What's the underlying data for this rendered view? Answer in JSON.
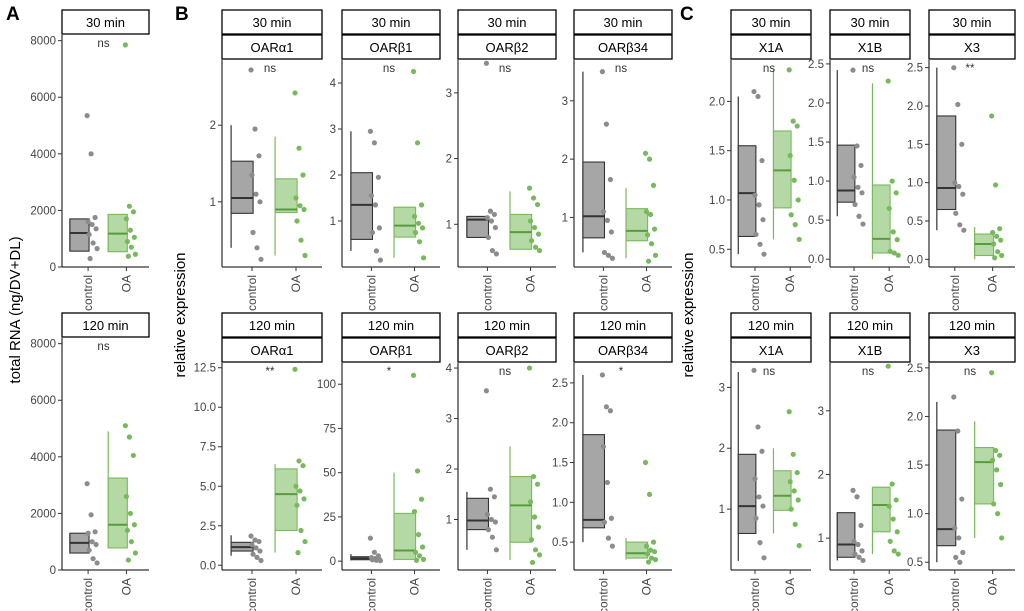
{
  "figure": {
    "panel_letters": [
      "A",
      "B",
      "C"
    ],
    "y_titles": [
      "total RNA (ng/DV+DL)",
      "relative expression",
      "relative expression"
    ],
    "colors": {
      "control": "#8c8c8c",
      "OA": "#78b95d",
      "control_fill": "#a6a6a6",
      "OA_fill": "#b5d9a4"
    }
  },
  "chart_data": [
    {
      "id": "A-30",
      "type": "box",
      "strips": [
        "30 min"
      ],
      "sig": "ns",
      "ylim": [
        0,
        8200
      ],
      "ticks": [
        0,
        2000,
        4000,
        6000,
        8000
      ],
      "categories": [
        "control",
        "OA"
      ],
      "boxes": [
        {
          "q1": 560,
          "med": 1200,
          "q3": 1700,
          "lo": 560,
          "hi": 1700
        },
        {
          "q1": 540,
          "med": 1180,
          "q3": 1860,
          "lo": 540,
          "hi": 1860
        }
      ],
      "points": [
        [
          5350,
          4000,
          1750,
          1600,
          1500,
          1350,
          1150,
          850,
          650,
          300
        ],
        [
          7850,
          2150,
          1950,
          1700,
          1300,
          1050,
          900,
          700,
          450,
          380
        ]
      ]
    },
    {
      "id": "A-120",
      "type": "box",
      "strips": [
        "120 min"
      ],
      "sig": "ns",
      "ylim": [
        0,
        8200
      ],
      "ticks": [
        0,
        2000,
        4000,
        6000,
        8000
      ],
      "categories": [
        "control",
        "OA"
      ],
      "boxes": [
        {
          "q1": 600,
          "med": 960,
          "q3": 1300,
          "lo": 600,
          "hi": 1300
        },
        {
          "q1": 780,
          "med": 1600,
          "q3": 3250,
          "lo": 780,
          "hi": 4900
        }
      ],
      "points": [
        [
          3050,
          1950,
          1350,
          1300,
          1000,
          900,
          700,
          400,
          250
        ],
        [
          5100,
          4700,
          4050,
          2600,
          2000,
          1600,
          1400,
          1000,
          600,
          350
        ]
      ]
    },
    {
      "id": "B-30-a1",
      "type": "box",
      "strips": [
        "30 min",
        "OARα1"
      ],
      "sig": "ns",
      "ylim": [
        0.15,
        2.85
      ],
      "ticks": [
        1,
        2
      ],
      "categories": [
        "control",
        "OA"
      ],
      "boxes": [
        {
          "q1": 0.85,
          "med": 1.05,
          "q3": 1.53,
          "lo": 0.4,
          "hi": 2.0
        },
        {
          "q1": 0.86,
          "med": 0.9,
          "q3": 1.3,
          "lo": 0.3,
          "hi": 1.85
        }
      ],
      "points": [
        [
          2.72,
          1.95,
          1.6,
          1.35,
          1.1,
          1.0,
          0.6,
          0.4,
          0.25
        ],
        [
          2.42,
          1.7,
          1.35,
          1.05,
          0.95,
          0.9,
          0.75,
          0.5,
          0.3
        ]
      ]
    },
    {
      "id": "B-30-b1",
      "type": "box",
      "strips": [
        "30 min",
        "OARβ1"
      ],
      "sig": "ns",
      "ylim": [
        0,
        4.5
      ],
      "ticks": [
        1,
        2,
        3,
        4
      ],
      "categories": [
        "control",
        "OA"
      ],
      "boxes": [
        {
          "q1": 0.6,
          "med": 1.35,
          "q3": 2.05,
          "lo": 0.35,
          "hi": 2.95
        },
        {
          "q1": 0.65,
          "med": 0.9,
          "q3": 1.3,
          "lo": 0.2,
          "hi": 1.3
        }
      ],
      "points": [
        [
          2.95,
          2.7,
          1.95,
          1.55,
          1.35,
          0.85,
          0.75,
          0.35,
          0.15
        ],
        [
          4.25,
          2.7,
          1.35,
          1.1,
          0.95,
          0.85,
          0.75,
          0.55,
          0.2
        ]
      ]
    },
    {
      "id": "B-30-b2",
      "type": "box",
      "strips": [
        "30 min",
        "OARβ2"
      ],
      "sig": "ns",
      "ylim": [
        0.35,
        3.5
      ],
      "ticks": [
        1,
        2,
        3
      ],
      "categories": [
        "control",
        "OA"
      ],
      "boxes": [
        {
          "q1": 0.8,
          "med": 1.07,
          "q3": 1.12,
          "lo": 0.8,
          "hi": 1.12
        },
        {
          "q1": 0.62,
          "med": 0.88,
          "q3": 1.15,
          "lo": 0.62,
          "hi": 1.5
        }
      ],
      "points": [
        [
          3.45,
          1.2,
          1.15,
          1.1,
          1.05,
          0.95,
          0.8,
          0.6,
          0.55
        ],
        [
          1.55,
          1.4,
          1.3,
          1.05,
          0.95,
          0.85,
          0.75,
          0.65,
          0.6
        ]
      ]
    },
    {
      "id": "B-30-b34",
      "type": "box",
      "strips": [
        "30 min",
        "OARβ34"
      ],
      "sig": "ns",
      "ylim": [
        0.15,
        3.7
      ],
      "ticks": [
        1,
        2,
        3
      ],
      "categories": [
        "control",
        "OA"
      ],
      "boxes": [
        {
          "q1": 0.65,
          "med": 1.02,
          "q3": 1.95,
          "lo": 0.4,
          "hi": 3.5
        },
        {
          "q1": 0.6,
          "med": 0.77,
          "q3": 1.15,
          "lo": 0.3,
          "hi": 1.5
        }
      ],
      "points": [
        [
          3.5,
          2.6,
          1.65,
          1.1,
          0.95,
          0.75,
          0.4,
          0.35,
          0.3
        ],
        [
          2.1,
          2.0,
          1.55,
          1.1,
          1.05,
          0.8,
          0.7,
          0.55,
          0.35,
          0.25
        ]
      ]
    },
    {
      "id": "B-120-a1",
      "type": "box",
      "strips": [
        "120 min",
        "OARα1"
      ],
      "sig": "**",
      "ylim": [
        -0.3,
        12.8
      ],
      "ticks": [
        0.0,
        2.5,
        5.0,
        7.5,
        10.0,
        12.5
      ],
      "tick_digits": 1,
      "categories": [
        "control",
        "OA"
      ],
      "boxes": [
        {
          "q1": 0.9,
          "med": 1.15,
          "q3": 1.45,
          "lo": 0.6,
          "hi": 1.9
        },
        {
          "q1": 2.2,
          "med": 4.5,
          "q3": 6.1,
          "lo": 0.8,
          "hi": 6.4
        }
      ],
      "points": [
        [
          1.85,
          1.6,
          1.5,
          1.3,
          1.1,
          0.9,
          0.7,
          0.5,
          0.3
        ],
        [
          12.4,
          6.6,
          6.3,
          5.0,
          4.7,
          4.2,
          3.8,
          2.2,
          1.5,
          0.8
        ]
      ]
    },
    {
      "id": "B-120-b1",
      "type": "box",
      "strips": [
        "120 min",
        "OARβ1"
      ],
      "sig": "*",
      "ylim": [
        -5,
        112
      ],
      "ticks": [
        0,
        25,
        50,
        75,
        100
      ],
      "categories": [
        "control",
        "OA"
      ],
      "boxes": [
        {
          "q1": 0.8,
          "med": 1.6,
          "q3": 2.5,
          "lo": 0.5,
          "hi": 4
        },
        {
          "q1": 1,
          "med": 6,
          "q3": 27,
          "lo": 0.5,
          "hi": 50
        }
      ],
      "points": [
        [
          13,
          5,
          3,
          2,
          1.5,
          1,
          0.8,
          0.5,
          0.3
        ],
        [
          105,
          51,
          35,
          28,
          15,
          8,
          5,
          3,
          1,
          0.5
        ]
      ]
    },
    {
      "id": "B-120-b2",
      "type": "box",
      "strips": [
        "120 min",
        "OARβ2"
      ],
      "sig": "ns",
      "ylim": [
        0,
        4.1
      ],
      "ticks": [
        1,
        2,
        3,
        4
      ],
      "categories": [
        "control",
        "OA"
      ],
      "boxes": [
        {
          "q1": 0.8,
          "med": 0.98,
          "q3": 1.42,
          "lo": 0.4,
          "hi": 1.55
        },
        {
          "q1": 0.55,
          "med": 1.28,
          "q3": 1.85,
          "lo": 0.2,
          "hi": 2.45
        }
      ],
      "points": [
        [
          3.55,
          1.6,
          1.45,
          1.1,
          1.0,
          0.95,
          0.8,
          0.65,
          0.4
        ],
        [
          4.0,
          1.85,
          1.7,
          1.35,
          1.05,
          0.85,
          0.6,
          0.4,
          0.3,
          0.15
        ]
      ]
    },
    {
      "id": "B-120-b34",
      "type": "box",
      "strips": [
        "120 min",
        "OARβ34"
      ],
      "sig": "*",
      "ylim": [
        0.15,
        2.75
      ],
      "ticks": [
        0.5,
        1.0,
        1.5,
        2.0,
        2.5
      ],
      "tick_digits": 1,
      "categories": [
        "control",
        "OA"
      ],
      "boxes": [
        {
          "q1": 0.68,
          "med": 0.78,
          "q3": 1.85,
          "lo": 0.5,
          "hi": 2.6
        },
        {
          "q1": 0.3,
          "med": 0.36,
          "q3": 0.5,
          "lo": 0.28,
          "hi": 0.55
        }
      ],
      "points": [
        [
          2.6,
          2.2,
          2.15,
          1.7,
          1.25,
          0.8,
          0.75,
          0.55,
          0.45
        ],
        [
          1.5,
          1.1,
          0.5,
          0.45,
          0.4,
          0.38,
          0.35,
          0.3,
          0.28,
          0.25
        ]
      ]
    },
    {
      "id": "C-30-x1a",
      "type": "box",
      "strips": [
        "30 min",
        "X1A"
      ],
      "sig": "ns",
      "ylim": [
        0.32,
        2.42
      ],
      "ticks": [
        0.5,
        1.0,
        1.5,
        2.0
      ],
      "tick_digits": 1,
      "categories": [
        "control",
        "OA"
      ],
      "boxes": [
        {
          "q1": 0.63,
          "med": 1.07,
          "q3": 1.55,
          "lo": 0.45,
          "hi": 2.05
        },
        {
          "q1": 0.92,
          "med": 1.3,
          "q3": 1.7,
          "lo": 0.6,
          "hi": 2.32
        }
      ],
      "points": [
        [
          2.1,
          2.05,
          1.4,
          1.05,
          0.95,
          0.8,
          0.65,
          0.55,
          0.45
        ],
        [
          2.32,
          1.8,
          1.75,
          1.45,
          1.2,
          1.0,
          0.85,
          0.75,
          0.6
        ]
      ]
    },
    {
      "id": "C-30-x1b",
      "type": "box",
      "strips": [
        "30 min",
        "X1B"
      ],
      "sig": "ns",
      "ylim": [
        -0.1,
        2.55
      ],
      "ticks": [
        0.0,
        0.5,
        1.0,
        1.5,
        2.0,
        2.5
      ],
      "tick_digits": 1,
      "categories": [
        "control",
        "OA"
      ],
      "boxes": [
        {
          "q1": 0.73,
          "med": 0.88,
          "q3": 1.46,
          "lo": 0.55,
          "hi": 2.42
        },
        {
          "q1": 0.08,
          "med": 0.26,
          "q3": 0.95,
          "lo": 0.0,
          "hi": 2.25
        }
      ],
      "points": [
        [
          2.42,
          1.45,
          1.2,
          1.05,
          0.92,
          0.85,
          0.7,
          0.55,
          0.45
        ],
        [
          2.28,
          1.0,
          0.85,
          0.65,
          0.35,
          0.25,
          0.1,
          0.08,
          0.05
        ]
      ]
    },
    {
      "id": "C-30-x3",
      "type": "box",
      "strips": [
        "30 min",
        "X3"
      ],
      "sig": "**",
      "ylim": [
        -0.1,
        2.6
      ],
      "ticks": [
        0.0,
        0.5,
        1.0,
        1.5,
        2.0,
        2.5
      ],
      "tick_digits": 1,
      "categories": [
        "control",
        "OA"
      ],
      "boxes": [
        {
          "q1": 0.65,
          "med": 0.93,
          "q3": 1.87,
          "lo": 0.38,
          "hi": 2.5
        },
        {
          "q1": 0.05,
          "med": 0.2,
          "q3": 0.33,
          "lo": 0.0,
          "hi": 0.42
        }
      ],
      "points": [
        [
          2.5,
          2.02,
          1.5,
          1.0,
          0.95,
          0.85,
          0.6,
          0.45,
          0.38
        ],
        [
          1.87,
          0.97,
          0.4,
          0.35,
          0.3,
          0.25,
          0.2,
          0.1,
          0.05,
          0.02
        ]
      ]
    },
    {
      "id": "C-120-x1a",
      "type": "box",
      "strips": [
        "120 min",
        "X1A"
      ],
      "sig": "ns",
      "ylim": [
        0,
        3.4
      ],
      "ticks": [
        1,
        2,
        3
      ],
      "categories": [
        "control",
        "OA"
      ],
      "boxes": [
        {
          "q1": 0.6,
          "med": 1.05,
          "q3": 1.9,
          "lo": 0.15,
          "hi": 3.25
        },
        {
          "q1": 0.98,
          "med": 1.22,
          "q3": 1.63,
          "lo": 0.6,
          "hi": 2.0
        }
      ],
      "points": [
        [
          3.28,
          2.35,
          1.95,
          1.5,
          1.2,
          1.05,
          0.85,
          0.45,
          0.2
        ],
        [
          2.6,
          1.9,
          1.6,
          1.45,
          1.3,
          1.15,
          1.0,
          0.75,
          0.4
        ]
      ]
    },
    {
      "id": "C-120-x1b",
      "type": "box",
      "strips": [
        "120 min",
        "X1B"
      ],
      "sig": "ns",
      "ylim": [
        0.5,
        3.75
      ],
      "ticks": [
        1,
        2,
        3
      ],
      "categories": [
        "control",
        "OA"
      ],
      "boxes": [
        {
          "q1": 0.7,
          "med": 0.9,
          "q3": 1.4,
          "lo": 0.65,
          "hi": 1.4
        },
        {
          "q1": 1.1,
          "med": 1.52,
          "q3": 1.8,
          "lo": 0.75,
          "hi": 1.8
        }
      ],
      "points": [
        [
          1.75,
          1.65,
          1.2,
          0.95,
          0.9,
          0.8,
          0.75,
          0.7,
          0.65
        ],
        [
          3.7,
          1.85,
          1.6,
          1.5,
          1.3,
          1.1,
          0.95,
          0.8,
          0.75
        ]
      ]
    },
    {
      "id": "C-120-x3",
      "type": "box",
      "strips": [
        "120 min",
        "X3"
      ],
      "sig": "ns",
      "ylim": [
        0.42,
        2.55
      ],
      "ticks": [
        0.5,
        1.0,
        1.5,
        2.0,
        2.5
      ],
      "tick_digits": 1,
      "categories": [
        "control",
        "OA"
      ],
      "boxes": [
        {
          "q1": 0.67,
          "med": 0.84,
          "q3": 1.86,
          "lo": 0.5,
          "hi": 2.15
        },
        {
          "q1": 1.1,
          "med": 1.53,
          "q3": 1.68,
          "lo": 0.75,
          "hi": 1.95
        }
      ],
      "points": [
        [
          2.2,
          1.85,
          1.15,
          0.85,
          0.75,
          0.6,
          0.55,
          0.5
        ],
        [
          2.45,
          1.65,
          1.6,
          1.55,
          1.45,
          1.3,
          1.1,
          1.0,
          0.75
        ]
      ]
    }
  ]
}
